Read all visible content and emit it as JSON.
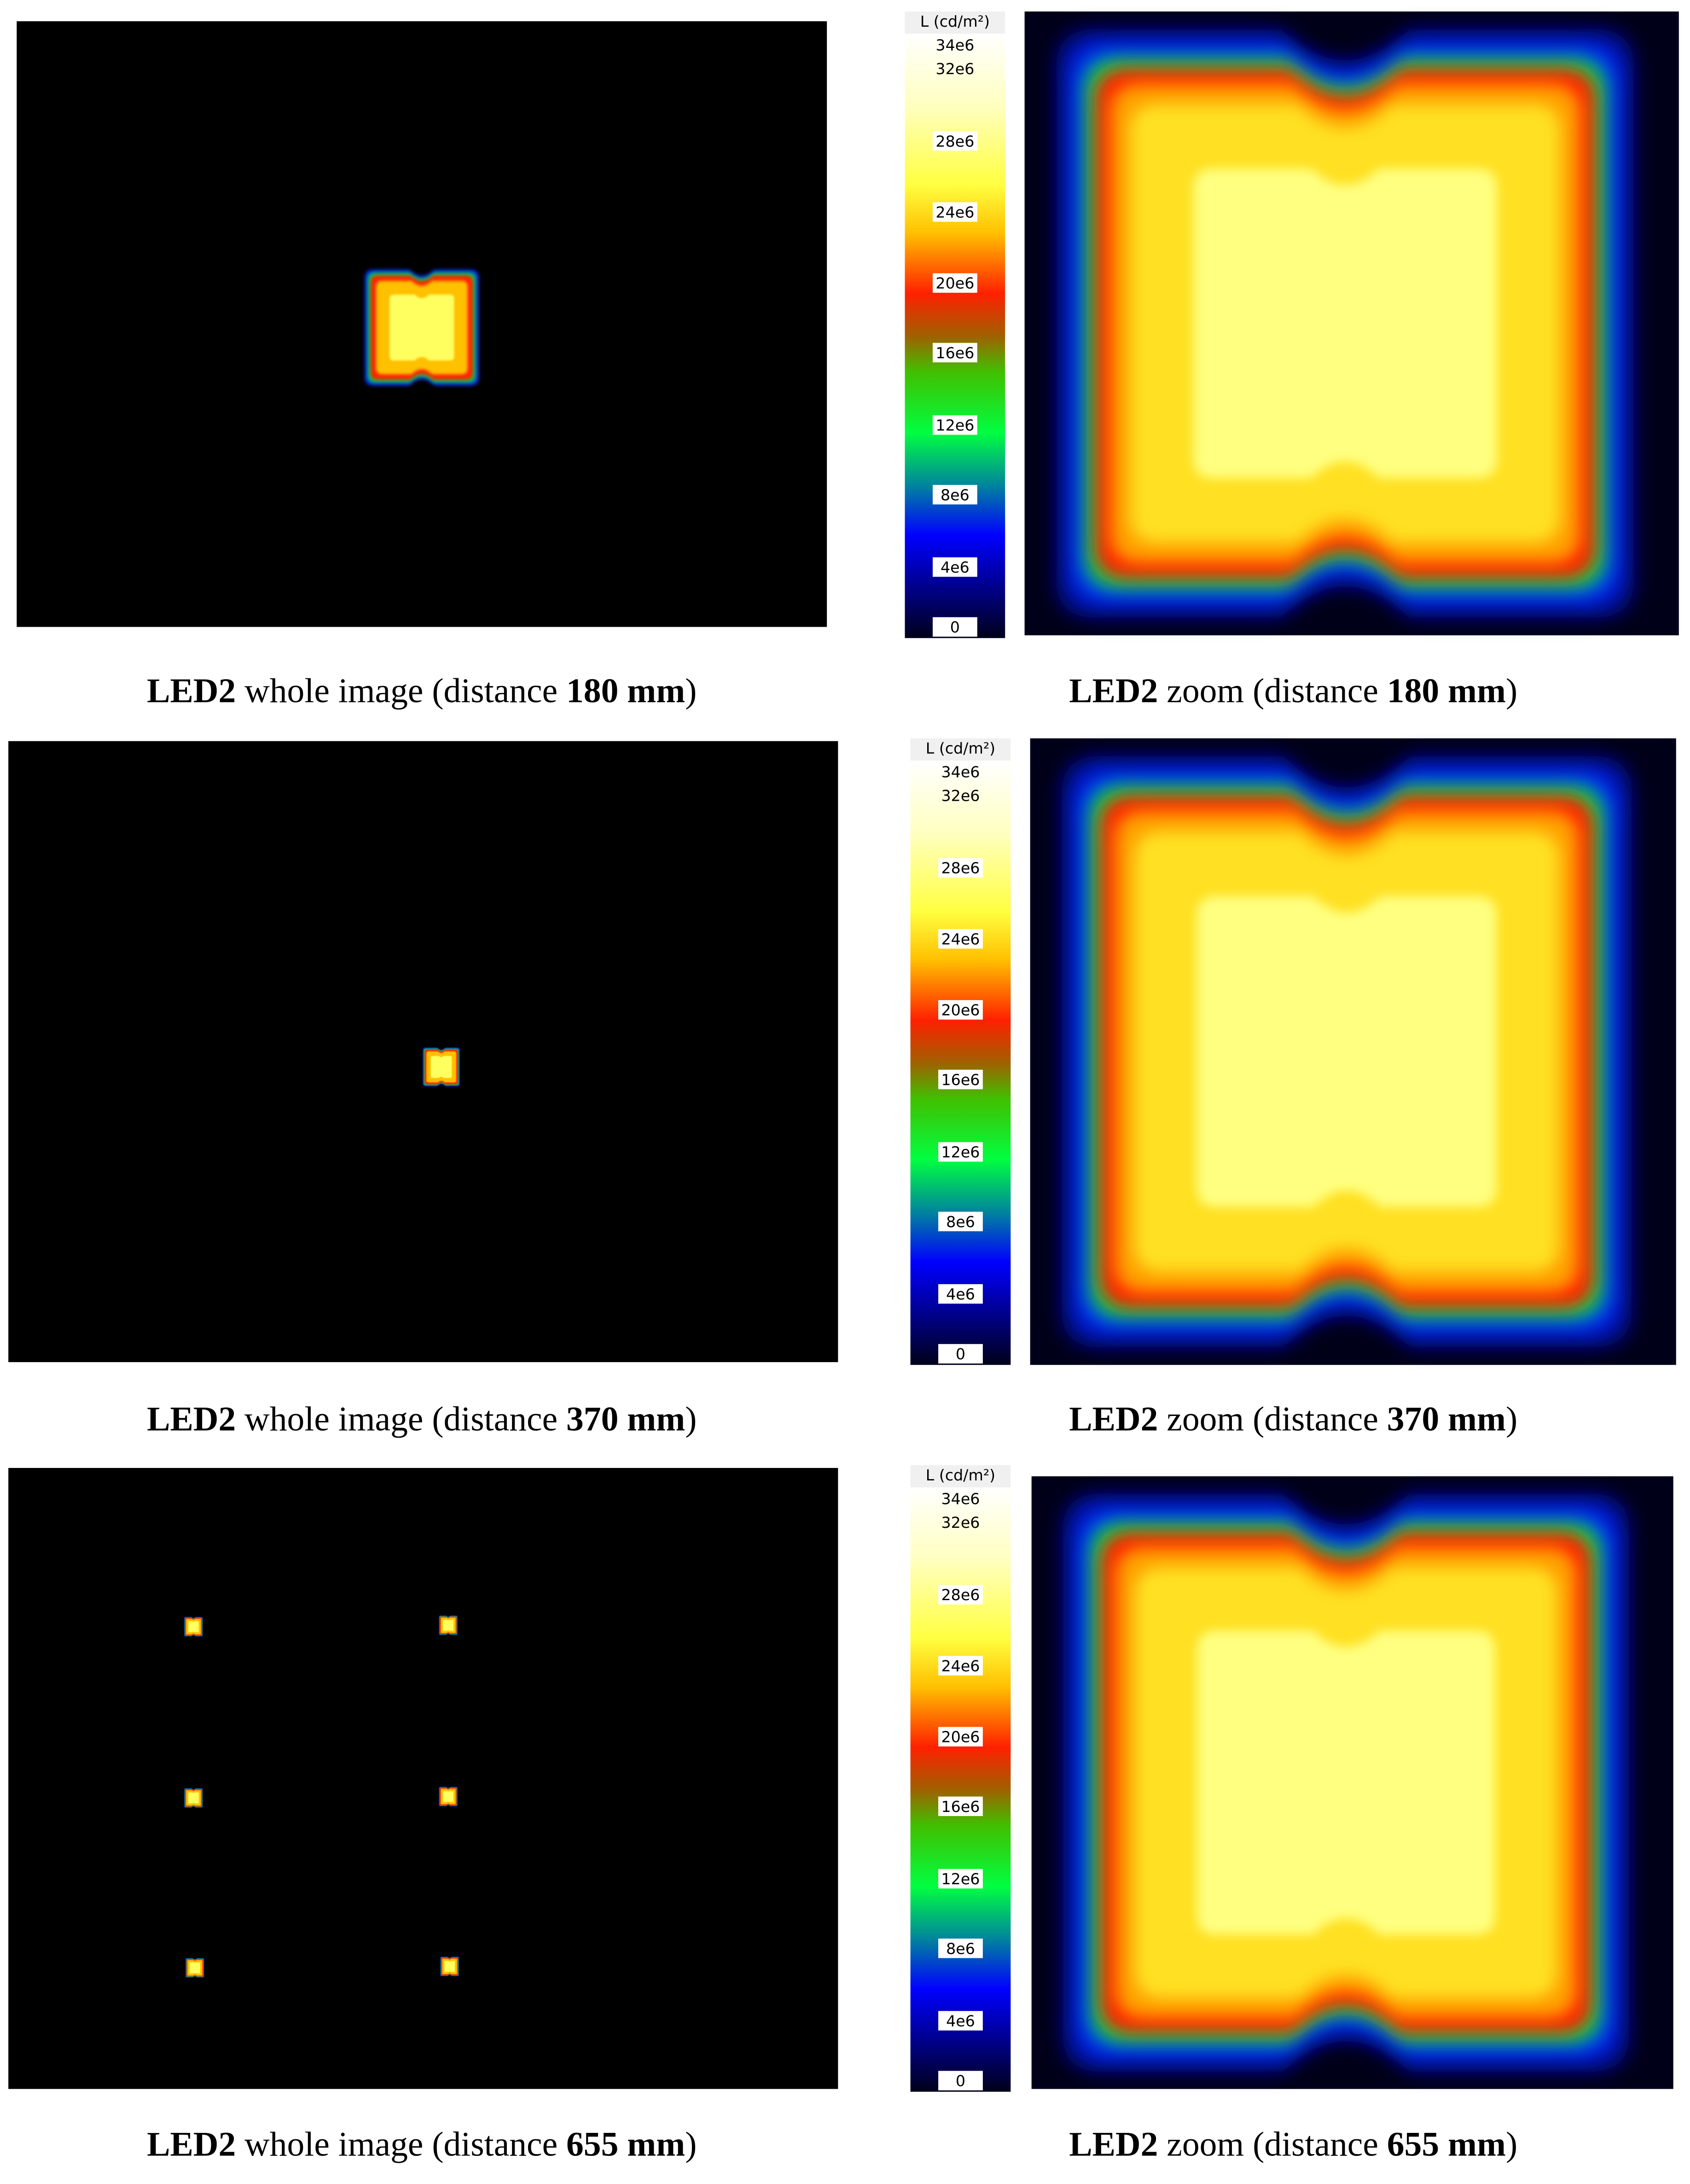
{
  "colorbar": {
    "title": "L (cd/m²)",
    "ticks": [
      "34e6",
      "32e6",
      "28e6",
      "24e6",
      "20e6",
      "16e6",
      "12e6",
      "8e6",
      "4e6",
      "0"
    ]
  },
  "rows": [
    {
      "whole_caption": [
        "LED2",
        " whole image (distance ",
        "180 mm",
        ")"
      ],
      "zoom_caption": [
        "LED2",
        " zoom (distance ",
        "180 mm",
        ")"
      ]
    },
    {
      "whole_caption": [
        "LED2",
        " whole image (distance ",
        "370 mm",
        ")"
      ],
      "zoom_caption": [
        "LED2",
        " zoom (distance ",
        "370 mm",
        ")"
      ]
    },
    {
      "whole_caption": [
        "LED2",
        " whole image (distance ",
        "655 mm",
        ")"
      ],
      "zoom_caption": [
        "LED2",
        " zoom (distance ",
        "655 mm",
        ")"
      ]
    }
  ]
}
